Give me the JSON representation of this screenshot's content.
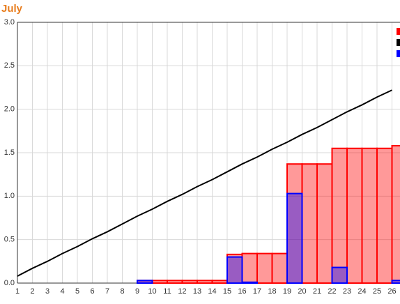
{
  "chart_data": {
    "type": "bar-line",
    "title": "July",
    "categories": [
      "1",
      "2",
      "3",
      "4",
      "5",
      "6",
      "7",
      "8",
      "9",
      "10",
      "11",
      "12",
      "13",
      "14",
      "15",
      "16",
      "17",
      "18",
      "19",
      "20",
      "21",
      "22",
      "23",
      "24",
      "25",
      "26"
    ],
    "series": [
      {
        "type": "bar",
        "color": "#ff0000",
        "values": [
          0,
          0,
          0,
          0,
          0,
          0,
          0,
          0,
          0.03,
          0.03,
          0.03,
          0.03,
          0.03,
          0.03,
          0.33,
          0.34,
          0.34,
          0.34,
          1.37,
          1.37,
          1.37,
          1.55,
          1.55,
          1.55,
          1.55,
          1.58
        ]
      },
      {
        "type": "line",
        "color": "#000000",
        "values": [
          0.08,
          0.17,
          0.25,
          0.34,
          0.42,
          0.51,
          0.59,
          0.68,
          0.77,
          0.85,
          0.94,
          1.02,
          1.11,
          1.19,
          1.28,
          1.37,
          1.45,
          1.54,
          1.62,
          1.71,
          1.79,
          1.88,
          1.97,
          2.05,
          2.14,
          2.22
        ]
      },
      {
        "type": "bar",
        "color": "#0000ff",
        "values": [
          0,
          0,
          0,
          0,
          0,
          0,
          0,
          0,
          0.03,
          0,
          0,
          0,
          0,
          0,
          0.3,
          0.01,
          0,
          0,
          1.03,
          0,
          0,
          0.18,
          0,
          0,
          0,
          0.03
        ]
      }
    ],
    "ylim": [
      0,
      3
    ],
    "yticks": [
      {
        "value": 0,
        "label": "0.0"
      },
      0.5,
      {
        "value": 1,
        "label": "1.0"
      },
      1.5,
      {
        "value": 2,
        "label": "2.0"
      },
      2.5,
      {
        "value": 3,
        "label": "3.0"
      }
    ],
    "grid": true
  }
}
